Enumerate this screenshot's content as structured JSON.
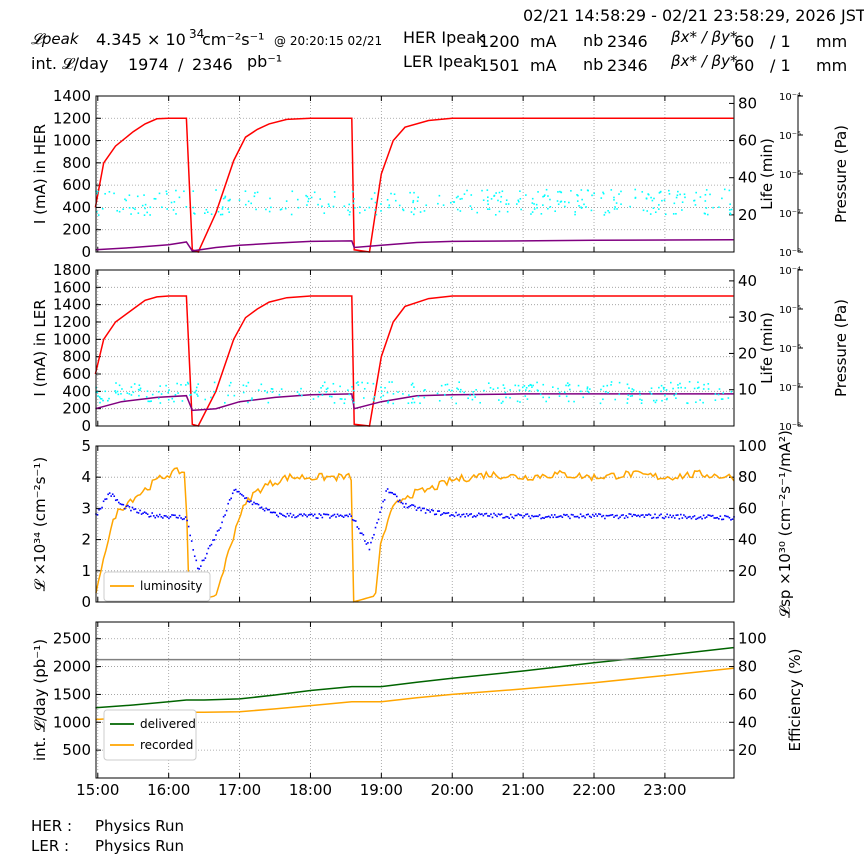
{
  "header": {
    "date_range": "02/21 14:58:29 - 02/21 23:58:29, 2026 JST",
    "lpeak_label": "𝓛peak",
    "lpeak_value": "4.345",
    "lpeak_exp": "× 10",
    "lpeak_sup": "34",
    "lpeak_unit": "cm⁻²s⁻¹",
    "lpeak_time": "@ 20:20:15 02/21",
    "intl_label": "int. 𝓛/day",
    "intl_value": "1974",
    "intl_slash": "/",
    "intl_value2": "2346",
    "intl_unit": "pb⁻¹",
    "her_label": "HER Ipeak",
    "her_value": "1200",
    "her_unit": "mA",
    "her_nb_label": "nb",
    "her_nb": "2346",
    "her_beta_label": "βx* / βy*",
    "her_beta_x": "60",
    "her_beta_y": "/ 1",
    "her_beta_unit": "mm",
    "ler_label": "LER Ipeak",
    "ler_value": "1501",
    "ler_unit": "mA",
    "ler_nb_label": "nb",
    "ler_nb": "2346",
    "ler_beta_label": "βx* / βy*",
    "ler_beta_x": "60",
    "ler_beta_y": "/ 1",
    "ler_beta_unit": "mm"
  },
  "footer": {
    "her": "HER :",
    "her_status": "Physics Run",
    "ler": "LER :",
    "ler_status": "Physics Run"
  },
  "colors": {
    "current": "#ff0000",
    "life": "#00ffff",
    "pressure": "#800080",
    "lumi": "#ffa500",
    "lsp": "#0000ff",
    "delivered": "#006400",
    "recorded": "#ffa500",
    "efficiency": "#808080"
  },
  "chart_data": [
    {
      "type": "line",
      "panel": "HER",
      "x_ticks": [
        "15:00",
        "16:00",
        "17:00",
        "18:00",
        "19:00",
        "20:00",
        "21:00",
        "22:00",
        "23:00"
      ],
      "xlim": [
        "14:58:29",
        "23:58:29"
      ],
      "ylabel": "I (mA) in HER",
      "ylim": [
        0,
        1400
      ],
      "yticks": [
        0,
        200,
        400,
        600,
        800,
        1000,
        1200,
        1400
      ],
      "y2label": "Life (min)",
      "y2lim": [
        0,
        84
      ],
      "y2ticks": [
        20,
        40,
        60,
        80
      ],
      "y3label": "Pressure (Pa)",
      "y3lim": [
        "10⁻⁸",
        "10⁻⁴"
      ],
      "y3ticks": [
        "10⁻⁸",
        "10⁻⁷",
        "10⁻⁶",
        "10⁻⁵",
        "10⁻⁴"
      ],
      "series": [
        {
          "role": "current",
          "x": [
            "14:58",
            "15:05",
            "15:15",
            "15:30",
            "15:40",
            "15:50",
            "16:00",
            "16:15",
            "16:20",
            "16:25",
            "16:40",
            "16:55",
            "17:05",
            "17:15",
            "17:25",
            "17:40",
            "18:00",
            "18:30",
            "18:35",
            "18:37",
            "18:50",
            "19:00",
            "19:10",
            "19:20",
            "19:40",
            "20:00",
            "21:00",
            "22:00",
            "23:58"
          ],
          "y": [
            400,
            800,
            950,
            1080,
            1150,
            1195,
            1200,
            1200,
            20,
            0,
            350,
            820,
            1030,
            1100,
            1150,
            1190,
            1200,
            1200,
            1200,
            20,
            0,
            700,
            1000,
            1120,
            1180,
            1200,
            1200,
            1200,
            1200
          ]
        },
        {
          "role": "pressure",
          "x": [
            "14:58",
            "15:30",
            "16:00",
            "16:15",
            "16:20",
            "16:40",
            "17:00",
            "17:30",
            "18:00",
            "18:35",
            "18:37",
            "19:00",
            "19:30",
            "20:00",
            "21:00",
            "22:00",
            "23:58"
          ],
          "y": [
            20,
            40,
            65,
            90,
            10,
            40,
            60,
            80,
            95,
            100,
            40,
            60,
            85,
            95,
            100,
            105,
            110
          ]
        }
      ]
    },
    {
      "type": "line",
      "panel": "LER",
      "x_ticks": [
        "15:00",
        "16:00",
        "17:00",
        "18:00",
        "19:00",
        "20:00",
        "21:00",
        "22:00",
        "23:00"
      ],
      "ylabel": "I (mA) in LER",
      "ylim": [
        0,
        1800
      ],
      "yticks": [
        0,
        200,
        400,
        600,
        800,
        1000,
        1200,
        1400,
        1600,
        1800
      ],
      "y2label": "Life (min)",
      "y2lim": [
        0,
        43
      ],
      "y2ticks": [
        10,
        20,
        30,
        40
      ],
      "y3label": "Pressure (Pa)",
      "y3lim": [
        "10⁻⁸",
        "10⁻⁴"
      ],
      "y3ticks": [
        "10⁻⁸",
        "10⁻⁷",
        "10⁻⁶",
        "10⁻⁵",
        "10⁻⁴"
      ],
      "series": [
        {
          "role": "current",
          "x": [
            "14:58",
            "15:05",
            "15:15",
            "15:30",
            "15:40",
            "15:50",
            "16:00",
            "16:15",
            "16:20",
            "16:25",
            "16:40",
            "16:55",
            "17:05",
            "17:15",
            "17:25",
            "17:40",
            "18:00",
            "18:35",
            "18:37",
            "18:50",
            "19:00",
            "19:10",
            "19:20",
            "19:40",
            "20:00",
            "21:00",
            "22:00",
            "23:58"
          ],
          "y": [
            600,
            1000,
            1200,
            1350,
            1450,
            1490,
            1500,
            1500,
            20,
            0,
            400,
            1000,
            1250,
            1350,
            1430,
            1480,
            1500,
            1500,
            20,
            0,
            800,
            1200,
            1380,
            1470,
            1500,
            1500,
            1500,
            1500
          ]
        },
        {
          "role": "pressure",
          "x": [
            "14:58",
            "15:20",
            "15:50",
            "16:15",
            "16:20",
            "16:40",
            "17:00",
            "17:30",
            "18:00",
            "18:35",
            "18:37",
            "19:00",
            "19:30",
            "20:00",
            "21:00",
            "22:00",
            "23:58"
          ],
          "y": [
            200,
            280,
            330,
            350,
            180,
            200,
            280,
            330,
            360,
            370,
            200,
            280,
            350,
            360,
            370,
            370,
            370
          ]
        }
      ]
    },
    {
      "type": "line",
      "panel": "luminosity",
      "ylabel": "𝓛 ×10³⁴ (cm⁻²s⁻¹)",
      "ylim": [
        0,
        5
      ],
      "yticks": [
        0,
        1,
        2,
        3,
        4,
        5
      ],
      "y2label": "𝓛sp ×10³⁰ (cm⁻²s⁻¹/mA²)",
      "y2lim": [
        0,
        100
      ],
      "y2ticks": [
        20,
        40,
        60,
        80,
        100
      ],
      "legend": [
        "luminosity"
      ],
      "series": [
        {
          "name": "luminosity",
          "x": [
            "14:58",
            "15:05",
            "15:15",
            "15:25",
            "15:40",
            "15:50",
            "16:00",
            "16:10",
            "16:15",
            "16:16",
            "16:40",
            "16:50",
            "17:00",
            "17:10",
            "17:20",
            "17:40",
            "18:00",
            "18:20",
            "18:30",
            "18:35",
            "18:36",
            "18:55",
            "19:00",
            "19:10",
            "19:20",
            "19:40",
            "20:00",
            "20:30",
            "21:00",
            "21:30",
            "22:00",
            "22:30",
            "23:00",
            "23:30",
            "23:58"
          ],
          "y": [
            0.2,
            1.5,
            2.8,
            3.2,
            3.6,
            3.9,
            4.1,
            4.2,
            4.1,
            0,
            0.2,
            1.5,
            2.8,
            3.4,
            3.7,
            4.0,
            4.0,
            4.0,
            4.0,
            4.0,
            0,
            0.2,
            2.0,
            3.0,
            3.4,
            3.6,
            3.9,
            4.1,
            4.0,
            4.1,
            4.0,
            4.1,
            4.0,
            4.1,
            4.0
          ]
        },
        {
          "role": "specific",
          "x": [
            "14:58",
            "15:10",
            "15:20",
            "15:40",
            "16:00",
            "16:15",
            "16:25",
            "16:45",
            "16:55",
            "17:10",
            "17:30",
            "18:00",
            "18:35",
            "18:50",
            "19:05",
            "19:20",
            "19:40",
            "20:00",
            "21:00",
            "22:00",
            "23:00",
            "23:58"
          ],
          "y": [
            55,
            70,
            62,
            56,
            55,
            54,
            20,
            50,
            72,
            64,
            56,
            55,
            55,
            35,
            72,
            62,
            58,
            56,
            55,
            55,
            55,
            54
          ]
        }
      ]
    },
    {
      "type": "line",
      "panel": "integrated",
      "ylabel": "int. 𝓛/day (pb⁻¹)",
      "ylim": [
        0,
        2800
      ],
      "yticks": [
        500,
        1000,
        1500,
        2000,
        2500
      ],
      "y2label": "Efficiency (%)",
      "y2lim": [
        0,
        112
      ],
      "y2ticks": [
        20,
        40,
        60,
        80,
        100
      ],
      "legend": [
        "delivered",
        "recorded"
      ],
      "series": [
        {
          "name": "delivered",
          "x": [
            "14:58",
            "15:30",
            "16:00",
            "16:15",
            "16:30",
            "17:00",
            "17:30",
            "18:00",
            "18:35",
            "19:00",
            "19:30",
            "20:00",
            "21:00",
            "22:00",
            "23:00",
            "23:58"
          ],
          "y": [
            1260,
            1310,
            1370,
            1400,
            1400,
            1420,
            1490,
            1570,
            1640,
            1640,
            1720,
            1790,
            1920,
            2070,
            2200,
            2340
          ]
        },
        {
          "name": "recorded",
          "x": [
            "14:58",
            "15:30",
            "16:00",
            "16:15",
            "16:30",
            "17:00",
            "17:30",
            "18:00",
            "18:35",
            "19:00",
            "19:30",
            "20:00",
            "21:00",
            "22:00",
            "23:00",
            "23:58"
          ],
          "y": [
            1050,
            1090,
            1150,
            1180,
            1180,
            1190,
            1240,
            1300,
            1370,
            1370,
            1440,
            1500,
            1600,
            1710,
            1840,
            1970
          ]
        },
        {
          "role": "efficiency",
          "x": [
            "14:58",
            "16:00",
            "17:00",
            "18:00",
            "19:00",
            "20:00",
            "21:00",
            "22:00",
            "23:58"
          ],
          "y": [
            85,
            85,
            85,
            85,
            85,
            85,
            85,
            85,
            85
          ]
        }
      ]
    }
  ]
}
